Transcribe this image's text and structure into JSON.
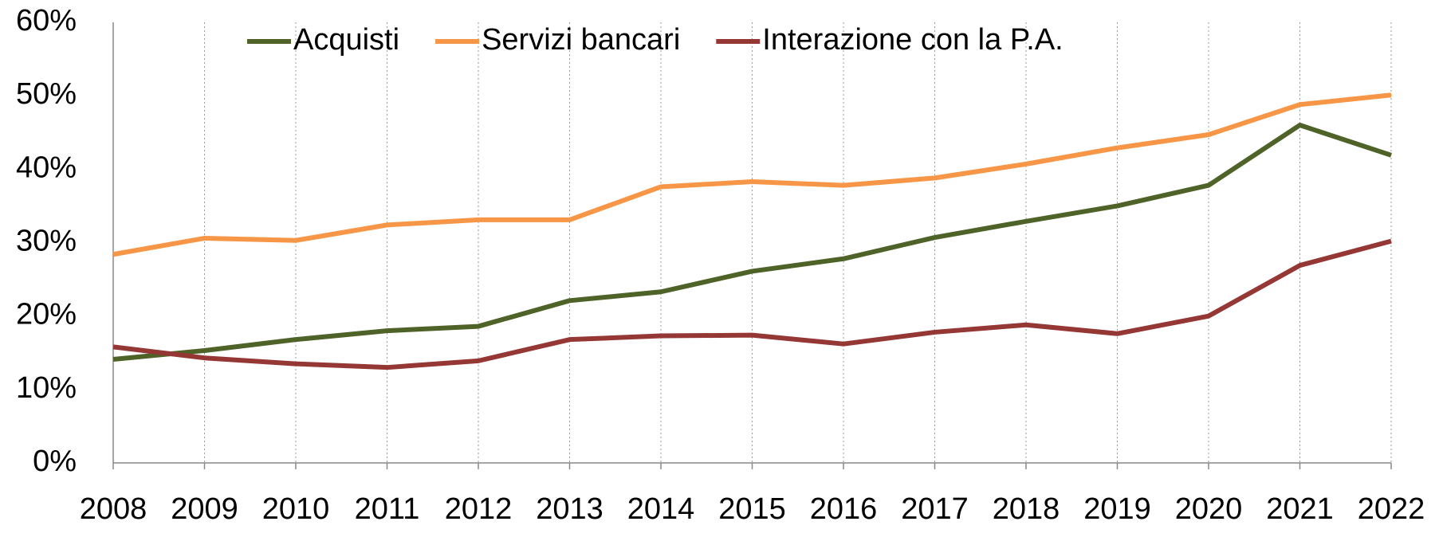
{
  "chart_data": {
    "type": "line",
    "categories": [
      "2008",
      "2009",
      "2010",
      "2011",
      "2012",
      "2013",
      "2014",
      "2015",
      "2016",
      "2017",
      "2018",
      "2019",
      "2020",
      "2021",
      "2022"
    ],
    "series": [
      {
        "name": "Acquisti",
        "color": "#4f6228",
        "values": [
          14.1,
          15.3,
          16.8,
          18.0,
          18.6,
          22.1,
          23.3,
          26.1,
          27.8,
          30.7,
          32.9,
          35.0,
          37.8,
          46.0,
          41.9
        ]
      },
      {
        "name": "Servizi bancari",
        "color": "#f79646",
        "values": [
          28.4,
          30.6,
          30.3,
          32.4,
          33.1,
          33.1,
          37.6,
          38.3,
          37.8,
          38.8,
          40.7,
          42.9,
          44.7,
          48.8,
          50.1
        ]
      },
      {
        "name": "Interazione con la P.A.",
        "color": "#953735",
        "values": [
          15.8,
          14.3,
          13.5,
          13.0,
          13.9,
          16.8,
          17.3,
          17.4,
          16.2,
          17.8,
          18.8,
          17.6,
          20.0,
          26.9,
          30.2
        ]
      }
    ],
    "ylim": [
      0,
      60
    ],
    "yticks": [
      {
        "value": 0,
        "label": "0%"
      },
      {
        "value": 10,
        "label": "10%"
      },
      {
        "value": 20,
        "label": "20%"
      },
      {
        "value": 30,
        "label": "30%"
      },
      {
        "value": 40,
        "label": "40%"
      },
      {
        "value": 50,
        "label": "50%"
      },
      {
        "value": 60,
        "label": "60%"
      }
    ],
    "grid": true,
    "legend": "top"
  }
}
